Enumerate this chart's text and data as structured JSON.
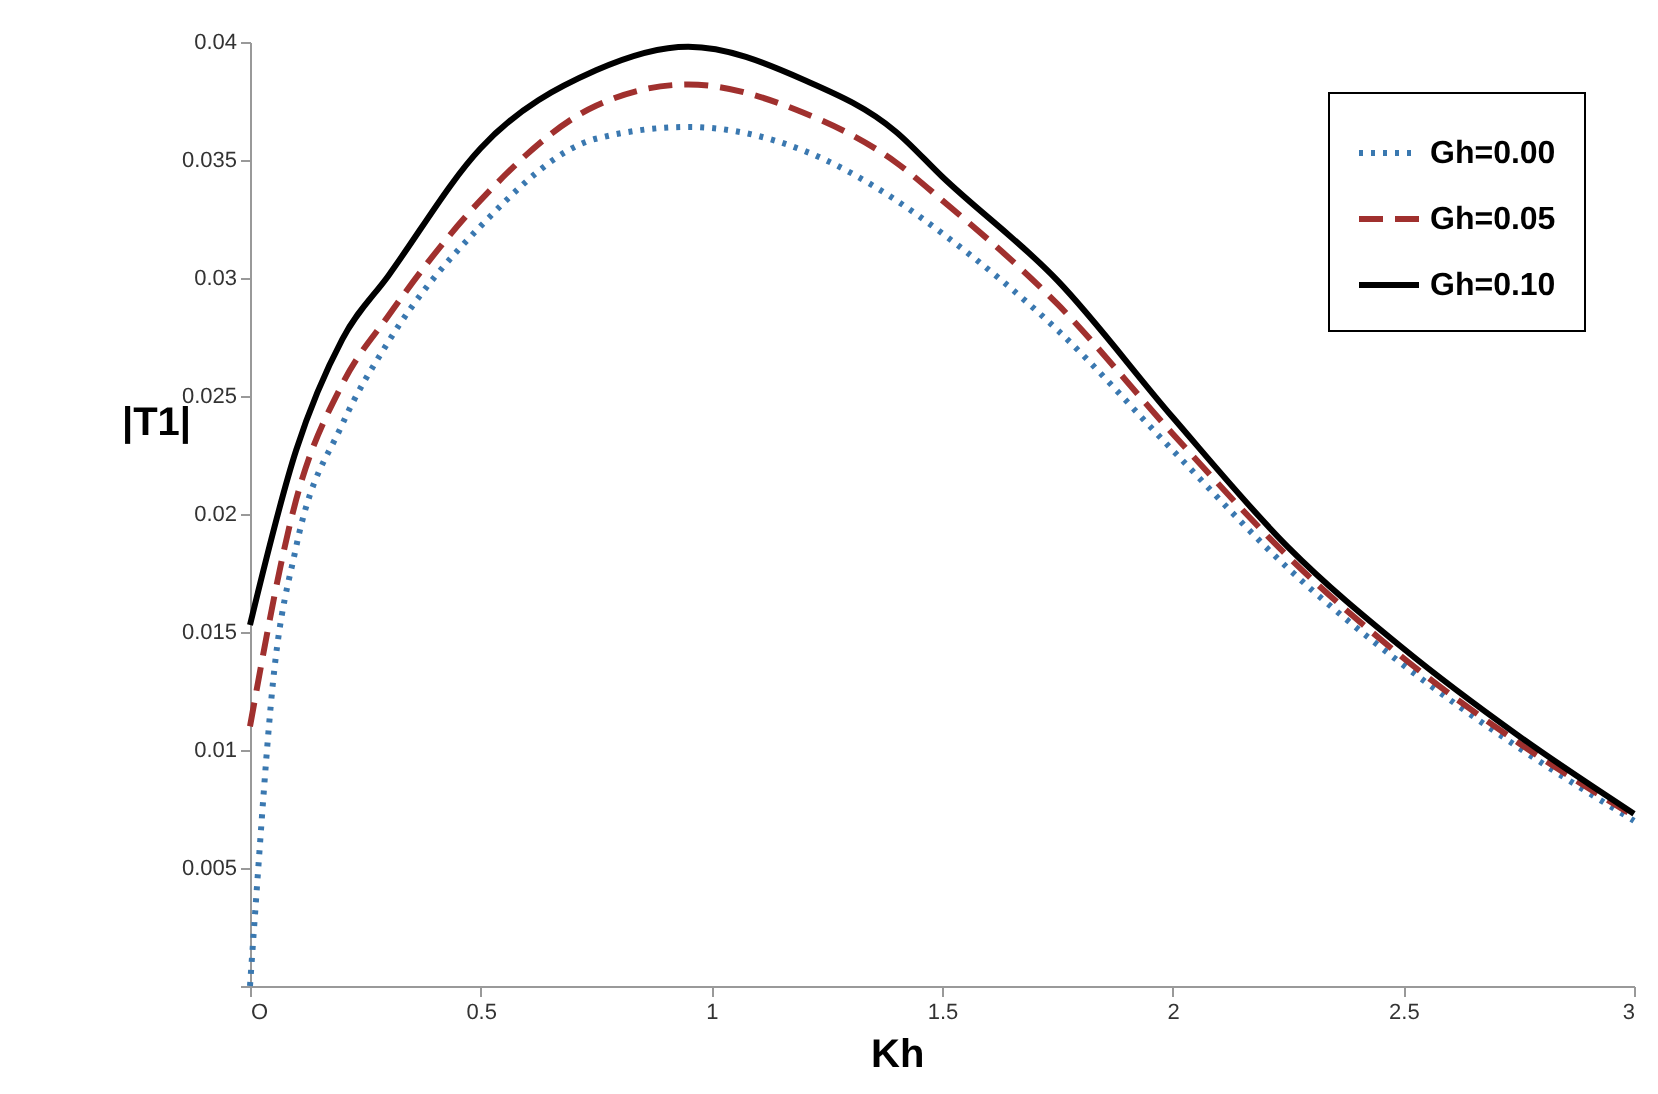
{
  "chart_data": {
    "type": "line",
    "xlabel": "Kh",
    "ylabel": "|T1|",
    "xlim": [
      0,
      3
    ],
    "ylim": [
      0,
      0.04
    ],
    "xticks": [
      {
        "value": 0,
        "label": "O"
      },
      0.5,
      1,
      1.5,
      2,
      2.5,
      3
    ],
    "yticks": [
      {
        "value": 0,
        "label": null
      },
      0.005,
      0.01,
      0.015,
      0.02,
      0.025,
      0.03,
      0.035,
      0.04
    ],
    "grid": false,
    "legend": "top right",
    "marker": "none",
    "series": [
      {
        "name": "Gh=0.00",
        "color": "#3a78b0",
        "line_style": "dotted",
        "x": [
          0,
          0.01,
          0.05,
          0.1,
          0.2,
          0.3,
          0.5,
          0.75,
          0.95,
          1.2,
          1.4,
          1.5,
          1.75,
          2,
          2.25,
          2.5,
          2.75,
          3
        ],
        "values": [
          0,
          0.0028,
          0.0129,
          0.0186,
          0.0238,
          0.0273,
          0.0322,
          0.0359,
          0.0364,
          0.0354,
          0.0333,
          0.0319,
          0.0278,
          0.0227,
          0.0177,
          0.0136,
          0.0101,
          0.007
        ]
      },
      {
        "name": "Gh=0.05",
        "color": "#a0302e",
        "line_style": "dashed",
        "x": [
          0,
          0.1,
          0.2,
          0.3,
          0.5,
          0.75,
          0.95,
          1.2,
          1.4,
          1.5,
          1.75,
          2,
          2.25,
          2.5,
          2.75,
          3
        ],
        "values": [
          0.011,
          0.0206,
          0.0255,
          0.0284,
          0.0333,
          0.0373,
          0.0382,
          0.037,
          0.0349,
          0.0333,
          0.0289,
          0.0234,
          0.0182,
          0.0139,
          0.0103,
          0.0072
        ]
      },
      {
        "name": "Gh=0.10",
        "color": "#000000",
        "line_style": "solid",
        "x": [
          0,
          0.1,
          0.2,
          0.3,
          0.5,
          0.75,
          0.95,
          1.2,
          1.4,
          1.5,
          1.75,
          2,
          2.25,
          2.5,
          2.75,
          3
        ],
        "values": [
          0.0153,
          0.0227,
          0.0274,
          0.0301,
          0.0355,
          0.0388,
          0.0398,
          0.0384,
          0.0362,
          0.0343,
          0.0299,
          0.0241,
          0.0186,
          0.0143,
          0.0106,
          0.0073
        ]
      }
    ]
  }
}
